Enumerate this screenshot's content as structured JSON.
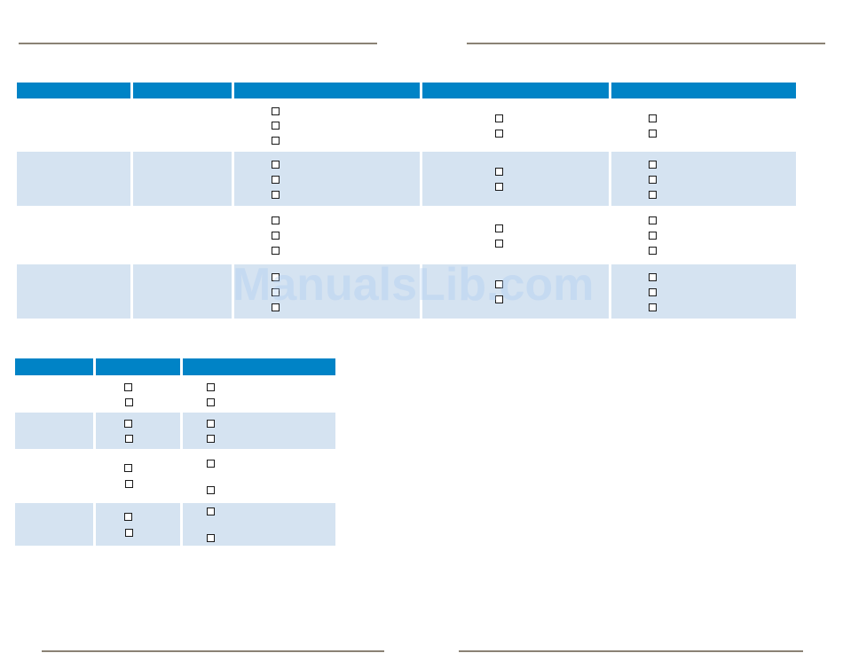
{
  "colors": {
    "header": "#0083c6",
    "row_shade": "#d5e3f1",
    "rule": "#8a8275"
  },
  "watermark": {
    "text": "ManualsLib.com"
  },
  "table1": {
    "rows": [
      {
        "shaded": false,
        "checkboxes": [
          3,
          2,
          2
        ]
      },
      {
        "shaded": true,
        "checkboxes": [
          3,
          2,
          3
        ]
      },
      {
        "shaded": false,
        "checkboxes": [
          3,
          2,
          3
        ]
      },
      {
        "shaded": true,
        "checkboxes": [
          3,
          2,
          3
        ]
      }
    ]
  },
  "table2": {
    "rows": [
      {
        "shaded": false,
        "checkboxes": [
          2,
          2
        ]
      },
      {
        "shaded": true,
        "checkboxes": [
          2,
          2
        ]
      },
      {
        "shaded": false,
        "checkboxes": [
          2,
          2
        ]
      },
      {
        "shaded": true,
        "checkboxes": [
          2,
          2
        ]
      }
    ]
  }
}
